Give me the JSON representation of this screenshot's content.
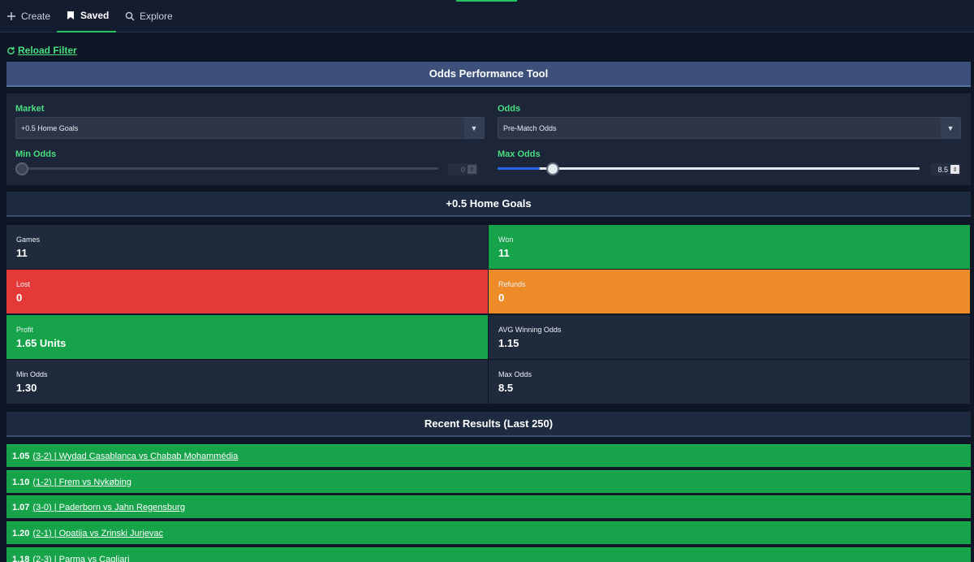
{
  "nav": {
    "tabs": [
      {
        "label": "Create",
        "icon": "plus-icon"
      },
      {
        "label": "Saved",
        "icon": "bookmark-icon"
      },
      {
        "label": "Explore",
        "icon": "search-icon"
      }
    ]
  },
  "reload_label": "Reload Filter",
  "title": "Odds Performance Tool",
  "filters": {
    "market_label": "Market",
    "market_value": "+0.5 Home Goals",
    "odds_label": "Odds",
    "odds_value": "Pre-Match Odds",
    "min_odds_label": "Min Odds",
    "min_odds_value": "0",
    "max_odds_label": "Max Odds",
    "max_odds_value": "8.5",
    "max_odds_slider_fraction": 0.1,
    "caret": "▼",
    "spin": "⇕"
  },
  "market_title": "+0.5 Home Goals",
  "stats": [
    {
      "label": "Games",
      "value": "11"
    },
    {
      "label": "Won",
      "value": "11"
    },
    {
      "label": "Lost",
      "value": "0"
    },
    {
      "label": "Refunds",
      "value": "0"
    },
    {
      "label": "Profit",
      "value": "1.65 Units"
    },
    {
      "label": "AVG Winning Odds",
      "value": "1.15"
    },
    {
      "label": "Min Odds",
      "value": "1.30"
    },
    {
      "label": "Max Odds",
      "value": "8.5"
    }
  ],
  "recent_title": "Recent Results (Last 250)",
  "results": [
    {
      "odds": "1.05",
      "text": "(3-2) | Wydad Casablanca vs Chabab Mohammédia"
    },
    {
      "odds": "1.10",
      "text": "(1-2) | Frem vs Nykøbing"
    },
    {
      "odds": "1.07",
      "text": "(3-0) | Paderborn vs Jahn Regensburg"
    },
    {
      "odds": "1.20",
      "text": "(2-1) | Opatija vs Zrinski Jurjevac"
    },
    {
      "odds": "1.18",
      "text": "(2-3) | Parma vs Cagliari"
    }
  ],
  "colors": {
    "accent": "#22c55e",
    "won": "#16a34a",
    "lost": "#e53939",
    "refund": "#ec8b28",
    "slider": "#2563eb"
  }
}
